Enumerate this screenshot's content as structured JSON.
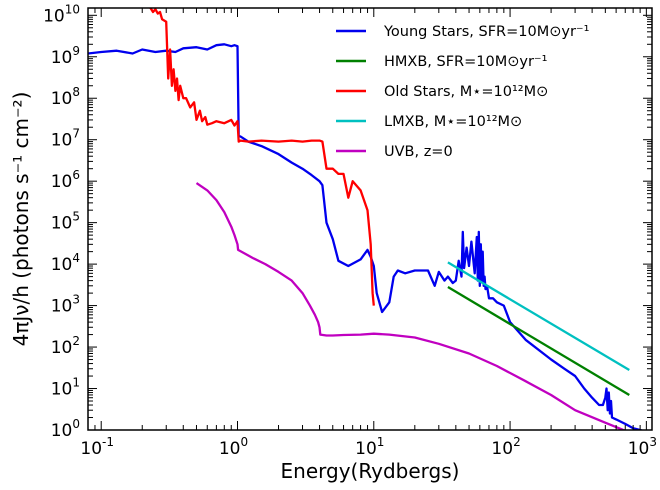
{
  "chart_data": {
    "type": "line",
    "xlabel": "Energy(Rydbergs)",
    "ylabel": "4πJν/h (photons s⁻¹ cm⁻²)",
    "xscale": "log",
    "yscale": "log",
    "xlim": [
      0.08,
      1100
    ],
    "ylim": [
      1,
      15000000000
    ],
    "grid": false,
    "legend_position": "top-right",
    "x_ticks": [
      {
        "value": 0.1,
        "base": "10",
        "exp": "-1"
      },
      {
        "value": 1,
        "base": "10",
        "exp": "0"
      },
      {
        "value": 10,
        "base": "10",
        "exp": "1"
      },
      {
        "value": 100,
        "base": "10",
        "exp": "2"
      },
      {
        "value": 1000,
        "base": "10",
        "exp": "3"
      }
    ],
    "y_ticks": [
      {
        "value": 1,
        "base": "10",
        "exp": "0"
      },
      {
        "value": 10,
        "base": "10",
        "exp": "1"
      },
      {
        "value": 100,
        "base": "10",
        "exp": "2"
      },
      {
        "value": 1000,
        "base": "10",
        "exp": "3"
      },
      {
        "value": 10000,
        "base": "10",
        "exp": "4"
      },
      {
        "value": 100000,
        "base": "10",
        "exp": "5"
      },
      {
        "value": 1000000,
        "base": "10",
        "exp": "6"
      },
      {
        "value": 10000000,
        "base": "10",
        "exp": "7"
      },
      {
        "value": 100000000,
        "base": "10",
        "exp": "8"
      },
      {
        "value": 1000000000,
        "base": "10",
        "exp": "9"
      },
      {
        "value": 10000000000,
        "base": "10",
        "exp": "10"
      }
    ],
    "series": [
      {
        "name": "Young Stars, SFR=10M⊙yr⁻¹",
        "color": "#0000ee",
        "x": [
          0.08,
          0.1,
          0.13,
          0.17,
          0.2,
          0.25,
          0.3,
          0.35,
          0.4,
          0.5,
          0.6,
          0.7,
          0.8,
          0.9,
          0.95,
          1.0,
          1.02,
          1.05,
          1.2,
          1.5,
          2.0,
          2.5,
          3.0,
          3.5,
          4.0,
          4.2,
          4.5,
          5.0,
          5.5,
          6.5,
          8.0,
          9.0,
          9.5,
          10.0,
          10.5,
          11.5,
          13.0,
          14,
          15,
          17,
          20,
          25,
          28,
          30,
          33,
          35,
          38,
          40,
          42,
          44,
          45,
          46,
          48,
          50,
          52,
          55,
          57,
          58,
          59,
          60,
          61,
          62,
          63,
          64,
          65,
          66,
          68,
          70,
          75,
          80,
          90,
          100,
          130,
          200,
          250,
          300,
          350,
          400,
          450,
          480,
          500,
          510,
          520,
          530,
          540,
          550,
          560,
          600,
          700,
          800,
          900,
          1000
        ],
        "y": [
          1200000000,
          1300000000,
          1400000000,
          1200000000,
          1500000000,
          1300000000,
          1400000000,
          1300000000,
          1600000000,
          1700000000,
          1500000000,
          1900000000,
          2000000000,
          1800000000,
          1900000000,
          1800000000,
          12000000,
          12000000,
          9000000,
          7000000,
          4500000,
          2800000,
          2000000,
          1400000,
          1000000,
          800000,
          100000,
          40000,
          12000,
          9000,
          13000,
          22000,
          15000,
          9000,
          2000,
          700,
          1200,
          5000,
          7000,
          6000,
          7000,
          7000,
          3000,
          6500,
          4000,
          5000,
          3500,
          4000,
          12000,
          5000,
          60000,
          8000,
          25000,
          9000,
          35000,
          6000,
          45000,
          4000,
          60000,
          3000,
          30000,
          4000,
          20000,
          3000,
          5000,
          2500,
          2800,
          1500,
          1500,
          1200,
          1000,
          400,
          150,
          50,
          30,
          20,
          10,
          6,
          4,
          4,
          6,
          10,
          3,
          8,
          2.5,
          5,
          2,
          1.8,
          1.4,
          1.1,
          1.0,
          0.9
        ]
      },
      {
        "name": "HMXB, SFR=10M⊙yr⁻¹",
        "color": "#008000",
        "x": [
          35,
          750
        ],
        "y": [
          2800,
          7
        ]
      },
      {
        "name": "Old Stars, M⋆=10¹²M⊙",
        "color": "#ff0000",
        "x": [
          0.17,
          0.2,
          0.21,
          0.22,
          0.23,
          0.24,
          0.25,
          0.26,
          0.27,
          0.28,
          0.3,
          0.31,
          0.32,
          0.33,
          0.34,
          0.35,
          0.36,
          0.37,
          0.38,
          0.4,
          0.42,
          0.45,
          0.48,
          0.5,
          0.53,
          0.55,
          0.58,
          0.6,
          0.65,
          0.7,
          0.8,
          0.9,
          0.95,
          1.0,
          1.02,
          1.05,
          1.2,
          1.5,
          2.0,
          2.5,
          3.0,
          3.5,
          4.0,
          4.2,
          4.5,
          5.0,
          5.5,
          6.0,
          6.5,
          7.0,
          8.0,
          9.0,
          9.5,
          9.8,
          10.0
        ],
        "y": [
          30000000000,
          25000000000,
          18000000000,
          30000000000,
          15000000000,
          12000000000,
          14000000000,
          11000000000,
          12000000000,
          8000000000,
          7000000000,
          300000000,
          1500000000,
          200000000,
          500000000,
          150000000,
          300000000,
          90000000,
          200000000,
          100000000,
          100000000,
          60000000,
          80000000,
          30000000,
          50000000,
          28000000,
          35000000,
          23000000,
          25000000,
          28000000,
          25000000,
          30000000,
          22000000,
          28000000,
          9000000,
          9500000,
          9000000,
          9500000,
          9000000,
          9500000,
          9000000,
          9500000,
          9500000,
          9000000,
          2000000,
          2000000,
          1500000,
          1500000,
          400000,
          1000000,
          600000,
          200000,
          30000,
          2000,
          1000
        ]
      },
      {
        "name": "LMXB, M⋆=10¹²M⊙",
        "color": "#00c0c0",
        "x": [
          35,
          750
        ],
        "y": [
          11000,
          28
        ]
      },
      {
        "name": "UVB, z=0",
        "color": "#c000c0",
        "x": [
          0.5,
          0.6,
          0.7,
          0.8,
          0.9,
          0.95,
          1.0,
          1.01,
          1.1,
          1.3,
          1.6,
          2.0,
          2.5,
          3.0,
          3.4,
          3.7,
          3.9,
          4.0,
          4.05,
          4.5,
          5.0,
          6.0,
          8.0,
          10,
          13,
          20,
          30,
          50,
          80,
          130,
          200,
          300,
          500,
          800
        ],
        "y": [
          900000,
          600000,
          350000,
          180000,
          80000,
          50000,
          30000,
          22000,
          19000,
          14000,
          10000,
          6500,
          4000,
          2000,
          1000,
          600,
          400,
          300,
          200,
          190,
          190,
          195,
          200,
          210,
          200,
          170,
          120,
          70,
          35,
          15,
          7,
          3,
          1.5,
          0.8
        ]
      }
    ]
  }
}
